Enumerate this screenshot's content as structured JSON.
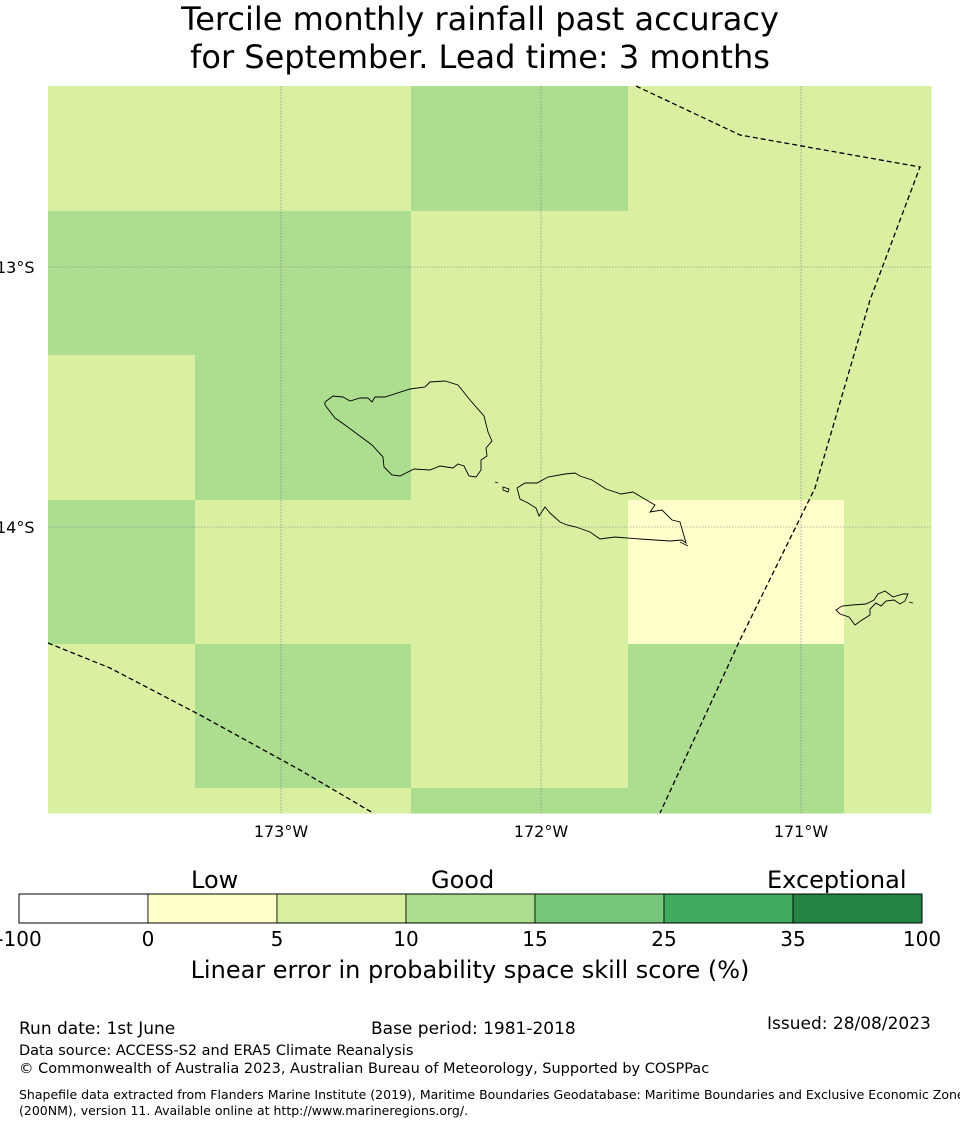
{
  "title": {
    "line1": "Tercile monthly rainfall past accuracy",
    "line2": "for September. Lead time: 3 months"
  },
  "map": {
    "lat_labels": [
      "13°S",
      "14°S"
    ],
    "lon_labels": [
      "173°W",
      "172°W",
      "171°W"
    ],
    "category_colors": {
      "low_0_5": "#ffffcc",
      "good_5_10": "#d9f0a3",
      "good_10_15": "#addd8e"
    },
    "cells": [
      {
        "row": 0,
        "col": 0,
        "category": "good_5_10"
      },
      {
        "row": 0,
        "col": 1,
        "category": "good_5_10"
      },
      {
        "row": 0,
        "col": 2,
        "category": "good_5_10"
      },
      {
        "row": 0,
        "col": 3,
        "category": "good_10_15"
      },
      {
        "row": 0,
        "col": 4,
        "category": "good_5_10"
      },
      {
        "row": 0,
        "col": 5,
        "category": "good_5_10"
      },
      {
        "row": 1,
        "col": 0,
        "category": "good_10_15"
      },
      {
        "row": 1,
        "col": 1,
        "category": "good_10_15"
      },
      {
        "row": 1,
        "col": 2,
        "category": "good_10_15"
      },
      {
        "row": 1,
        "col": 3,
        "category": "good_5_10"
      },
      {
        "row": 1,
        "col": 4,
        "category": "good_5_10"
      },
      {
        "row": 1,
        "col": 5,
        "category": "good_5_10"
      },
      {
        "row": 2,
        "col": 0,
        "category": "good_5_10"
      },
      {
        "row": 2,
        "col": 1,
        "category": "good_10_15"
      },
      {
        "row": 2,
        "col": 2,
        "category": "good_10_15"
      },
      {
        "row": 2,
        "col": 3,
        "category": "good_5_10"
      },
      {
        "row": 2,
        "col": 4,
        "category": "good_5_10"
      },
      {
        "row": 2,
        "col": 5,
        "category": "good_5_10"
      },
      {
        "row": 3,
        "col": 0,
        "category": "good_10_15"
      },
      {
        "row": 3,
        "col": 1,
        "category": "good_5_10"
      },
      {
        "row": 3,
        "col": 2,
        "category": "good_5_10"
      },
      {
        "row": 3,
        "col": 3,
        "category": "good_5_10"
      },
      {
        "row": 3,
        "col": 4,
        "category": "low_0_5"
      },
      {
        "row": 3,
        "col": 5,
        "category": "good_5_10"
      },
      {
        "row": 4,
        "col": 0,
        "category": "good_5_10"
      },
      {
        "row": 4,
        "col": 1,
        "category": "good_10_15"
      },
      {
        "row": 4,
        "col": 2,
        "category": "good_10_15"
      },
      {
        "row": 4,
        "col": 3,
        "category": "good_5_10"
      },
      {
        "row": 4,
        "col": 4,
        "category": "good_10_15"
      },
      {
        "row": 4,
        "col": 5,
        "category": "good_5_10"
      },
      {
        "row": 5,
        "col": 0,
        "category": "good_5_10"
      },
      {
        "row": 5,
        "col": 1,
        "category": "good_5_10"
      },
      {
        "row": 5,
        "col": 2,
        "category": "good_5_10"
      },
      {
        "row": 5,
        "col": 3,
        "category": "good_10_15"
      },
      {
        "row": 5,
        "col": 4,
        "category": "good_10_15"
      },
      {
        "row": 5,
        "col": 5,
        "category": "good_5_10"
      }
    ]
  },
  "colorbar": {
    "category_words": [
      "Low",
      "Good",
      "Exceptional"
    ],
    "ticks": [
      "-100",
      "0",
      "5",
      "10",
      "15",
      "25",
      "35",
      "100"
    ],
    "colors": [
      "#ffffff",
      "#ffffcc",
      "#d9f0a3",
      "#addd8e",
      "#78c679",
      "#41ab5d",
      "#238443"
    ],
    "label": "Linear error in probability space skill score (%)"
  },
  "footer": {
    "run_date": "Run date: 1st June",
    "base_period": "Base period: 1981-2018",
    "issued": "Issued: 28/08/2023",
    "data_source": "Data source: ACCESS-S2 and ERA5 Climate Reanalysis",
    "copyright": "© Commonwealth of Australia 2023, Australian Bureau of Meteorology, Supported by COSPPac",
    "shapefile_line1": "Shapefile data extracted from Flanders Marine Institute (2019), Maritime Boundaries Geodatabase: Maritime Boundaries and Exclusive Economic Zones",
    "shapefile_line2": "(200NM), version 11. Available online at http://www.marineregions.org/."
  }
}
